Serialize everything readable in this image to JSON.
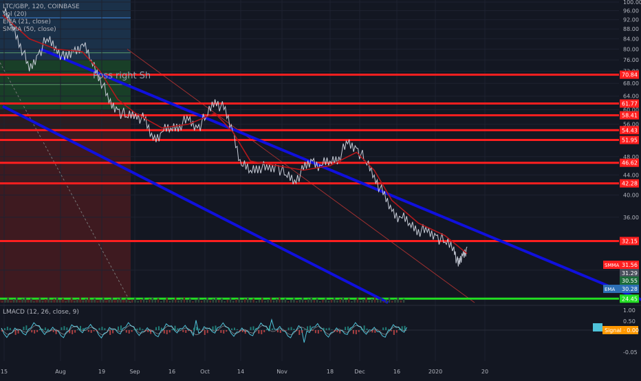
{
  "header": {
    "symbol_line": "LTC/GBP, 120, COINBASE",
    "indicators": [
      "Vol (20)",
      "EMA (21, close)",
      "SMMA (50, close)"
    ]
  },
  "annotation": "Poss right Sh",
  "macd_label": "LMACD (12, 26, close, 9)",
  "colors": {
    "background": "#131722",
    "support_line": "#ff1f1f",
    "floor_line": "#22dd22",
    "channel": "#1010dd",
    "price": "#c8cdd8",
    "ema": "#b4181c",
    "macd": "#4fc3d9",
    "signal": "#ff9800"
  },
  "chart_data": {
    "type": "line",
    "title": "LTC/GBP, 120, COINBASE",
    "x_ticks": [
      "15",
      "Aug",
      "19",
      "Sep",
      "16",
      "Oct",
      "14",
      "Nov",
      "18",
      "Dec",
      "16",
      "2020",
      "20"
    ],
    "y_ticks": [
      100.0,
      96.0,
      92.0,
      88.0,
      84.0,
      80.0,
      76.0,
      72.0,
      68.0,
      64.0,
      60.0,
      56.0,
      52.0,
      48.0,
      44.0,
      40.0,
      36.0,
      32.0,
      28.0
    ],
    "ylim": [
      24,
      101
    ],
    "scale": "log",
    "horizontal_levels": [
      70.84,
      61.77,
      58.41,
      54.43,
      51.95,
      46.62,
      42.28,
      32.15
    ],
    "floor_level": 24.45,
    "price_badges": [
      {
        "label": "SMMA",
        "value": 31.56
      },
      {
        "label": "",
        "value": 31.29
      },
      {
        "label": "",
        "value": 30.55
      },
      {
        "label": "EMA",
        "value": 30.28
      }
    ],
    "series": [
      {
        "name": "Price",
        "points": [
          [
            0,
            96
          ],
          [
            2,
            90
          ],
          [
            4,
            82
          ],
          [
            6,
            72
          ],
          [
            8,
            78
          ],
          [
            10,
            84
          ],
          [
            12,
            81
          ],
          [
            14,
            76
          ],
          [
            16,
            79
          ],
          [
            18,
            82
          ],
          [
            20,
            76
          ],
          [
            22,
            70
          ],
          [
            24,
            62
          ],
          [
            26,
            60
          ],
          [
            28,
            58
          ],
          [
            30,
            59
          ],
          [
            32,
            57
          ],
          [
            34,
            52
          ],
          [
            36,
            54
          ],
          [
            38,
            55
          ],
          [
            40,
            56
          ],
          [
            42,
            57
          ],
          [
            44,
            55
          ],
          [
            46,
            58
          ],
          [
            48,
            63
          ],
          [
            50,
            60
          ],
          [
            52,
            54
          ],
          [
            54,
            46
          ],
          [
            56,
            45
          ],
          [
            58,
            46
          ],
          [
            60,
            45
          ],
          [
            62,
            46
          ],
          [
            64,
            44
          ],
          [
            66,
            43
          ],
          [
            68,
            45
          ],
          [
            70,
            47
          ],
          [
            72,
            46
          ],
          [
            74,
            47
          ],
          [
            76,
            48
          ],
          [
            78,
            51
          ],
          [
            80,
            50
          ],
          [
            82,
            47
          ],
          [
            84,
            44
          ],
          [
            86,
            40
          ],
          [
            88,
            37
          ],
          [
            90,
            36
          ],
          [
            92,
            35
          ],
          [
            94,
            34
          ],
          [
            96,
            33.5
          ],
          [
            98,
            33
          ],
          [
            100,
            32
          ],
          [
            102,
            31.3
          ],
          [
            103,
            28.5
          ],
          [
            104,
            30
          ],
          [
            105,
            31.29
          ]
        ]
      },
      {
        "name": "EMA (21, close)",
        "points": [
          [
            0,
            94
          ],
          [
            6,
            84
          ],
          [
            12,
            80
          ],
          [
            18,
            79
          ],
          [
            22,
            72
          ],
          [
            26,
            63
          ],
          [
            30,
            59
          ],
          [
            36,
            55
          ],
          [
            42,
            56
          ],
          [
            48,
            59
          ],
          [
            52,
            54
          ],
          [
            56,
            47
          ],
          [
            62,
            46
          ],
          [
            68,
            45
          ],
          [
            74,
            46
          ],
          [
            80,
            49
          ],
          [
            84,
            45
          ],
          [
            88,
            39
          ],
          [
            94,
            35
          ],
          [
            100,
            33
          ],
          [
            105,
            30.28
          ]
        ]
      }
    ],
    "channel_upper": [
      [
        7,
        80
      ],
      [
        146,
        24
      ]
    ],
    "channel_lower": [
      [
        0,
        61
      ],
      [
        98,
        24
      ]
    ],
    "macd": {
      "label": "LMACD (12, 26, close, 9)",
      "y_ticks": [
        1.0,
        0.5,
        0.0,
        -0.05
      ],
      "signal_value": 0.0,
      "badge_label": "Signal"
    }
  }
}
